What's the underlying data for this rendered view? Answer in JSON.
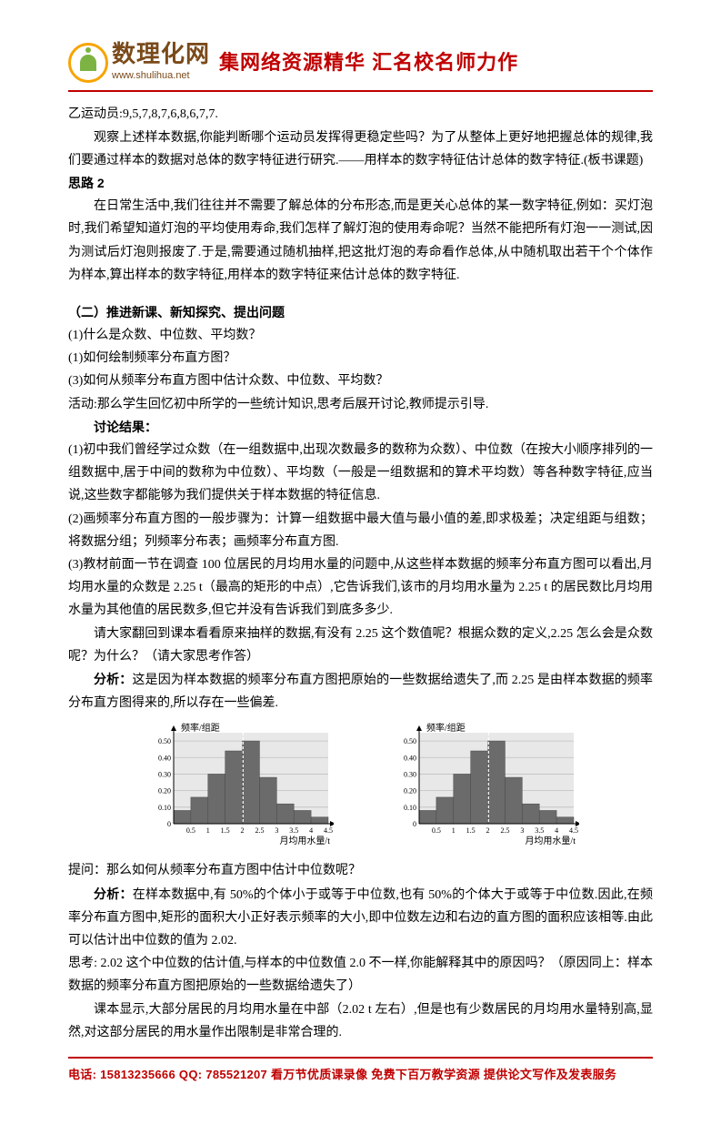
{
  "header": {
    "logo_title": "数理化网",
    "logo_url": "www.shulihua.net",
    "slogan": "集网络资源精华 汇名校名师力作"
  },
  "body": {
    "p1": "乙运动员:9,5,7,8,7,6,8,6,7,7.",
    "p2": "观察上述样本数据,你能判断哪个运动员发挥得更稳定些吗？为了从整体上更好地把握总体的规律,我们要通过样本的数据对总体的数字特征进行研究.——用样本的数字特征估计总体的数字特征.(板书课题)",
    "h_silu2": "思路 2",
    "p3": "在日常生活中,我们往往并不需要了解总体的分布形态,而是更关心总体的某一数字特征,例如：买灯泡时,我们希望知道灯泡的平均使用寿命,我们怎样了解灯泡的使用寿命呢？当然不能把所有灯泡一一测试,因为测试后灯泡则报废了.于是,需要通过随机抽样,把这批灯泡的寿命看作总体,从中随机取出若干个个体作为样本,算出样本的数字特征,用样本的数字特征来估计总体的数字特征.",
    "h_sec2": "（二）推进新课、新知探究、提出问题",
    "q1": "(1)什么是众数、中位数、平均数？",
    "q2": "(1)如何绘制频率分布直方图？",
    "q3": "(3)如何从频率分布直方图中估计众数、中位数、平均数？",
    "activity": "活动:那么学生回忆初中所学的一些统计知识,思考后展开讨论,教师提示引导.",
    "h_discuss": "讨论结果：",
    "d1": "(1)初中我们曾经学过众数（在一组数据中,出现次数最多的数称为众数）、中位数（在按大小顺序排列的一组数据中,居于中间的数称为中位数）、平均数（一般是一组数据和的算术平均数）等各种数字特征,应当说,这些数字都能够为我们提供关于样本数据的特征信息.",
    "d2": "(2)画频率分布直方图的一般步骤为：计算一组数据中最大值与最小值的差,即求极差；决定组距与组数；将数据分组；列频率分布表；画频率分布直方图.",
    "d3": "(3)教材前面一节在调查 100 位居民的月均用水量的问题中,从这些样本数据的频率分布直方图可以看出,月均用水量的众数是 2.25 t（最高的矩形的中点）,它告诉我们,该市的月均用水量为 2.25 t 的居民数比月均用水量为其他值的居民数多,但它并没有告诉我们到底多多少.",
    "p_ask": "请大家翻回到课本看看原来抽样的数据,有没有 2.25 这个数值呢？根据众数的定义,2.25 怎么会是众数呢？为什么？（请大家思考作答）",
    "p_analysis1_label": "分析：",
    "p_analysis1": "这是因为样本数据的频率分布直方图把原始的一些数据给遗失了,而 2.25 是由样本数据的频率分布直方图得来的,所以存在一些偏差.",
    "p_question": "提问：那么如何从频率分布直方图中估计中位数呢？",
    "p_analysis2_label": "分析：",
    "p_analysis2": "在样本数据中,有 50%的个体小于或等于中位数,也有 50%的个体大于或等于中位数.因此,在频率分布直方图中,矩形的面积大小正好表示频率的大小,即中位数左边和右边的直方图的面积应该相等.由此可以估计出中位数的值为 2.02.",
    "p_think": "思考: 2.02 这个中位数的估计值,与样本的中位数值 2.0 不一样,你能解释其中的原因吗？（原因同上：样本数据的频率分布直方图把原始的一些数据给遗失了）",
    "p_last": "课本显示,大部分居民的月均用水量在中部（2.02 t 左右）,但是也有少数居民的月均用水量特别高,显然,对这部分居民的用水量作出限制是非常合理的."
  },
  "chart": {
    "type": "histogram",
    "ylabel": "频率/组距",
    "xlabel": "月均用水量/t",
    "x_ticks": [
      "0.5",
      "1",
      "1.5",
      "2",
      "2.5",
      "3",
      "3.5",
      "4",
      "4.5"
    ],
    "y_ticks": [
      "0",
      "0.10",
      "0.20",
      "0.30",
      "0.40",
      "0.50"
    ],
    "bar_values": [
      0.08,
      0.16,
      0.3,
      0.44,
      0.5,
      0.28,
      0.12,
      0.08,
      0.04
    ],
    "bar_color": "#6b6b6b",
    "grid_color": "#bfbfbf",
    "background_color": "#e8e8e8",
    "axis_color": "#000000",
    "ylim": [
      0,
      0.55
    ],
    "xlim": [
      0,
      4.5
    ],
    "median_line_x": 2.02,
    "label_fontsize": 10,
    "tick_fontsize": 8
  },
  "footer": {
    "tel_label": "电话:",
    "tel": "15813235666",
    "qq_label": "QQ:",
    "qq": "785521207",
    "text": "看万节优质课录像 免费下百万教学资源 提供论文写作及发表服务"
  },
  "colors": {
    "brand_red": "#c00000",
    "brand_brown": "#7a4a1a",
    "brand_orange": "#f7a400",
    "brand_green": "#7cb342",
    "text": "#000000",
    "page_bg": "#ffffff"
  }
}
